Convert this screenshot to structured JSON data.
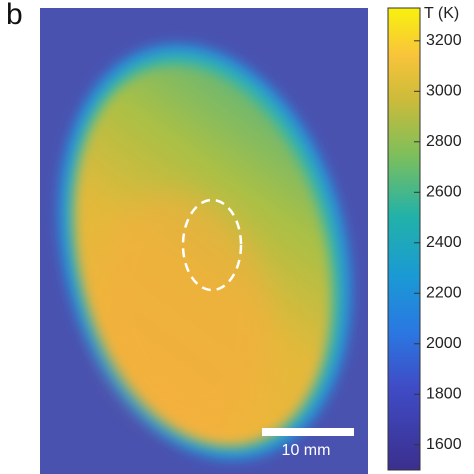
{
  "panel_label": "b",
  "scale_bar": {
    "label": "10 mm"
  },
  "colorbar": {
    "title": "T (K)",
    "lim": [
      1500,
      3330
    ],
    "ticks": [
      1600,
      1800,
      2000,
      2200,
      2400,
      2600,
      2800,
      3000,
      3200
    ]
  }
}
